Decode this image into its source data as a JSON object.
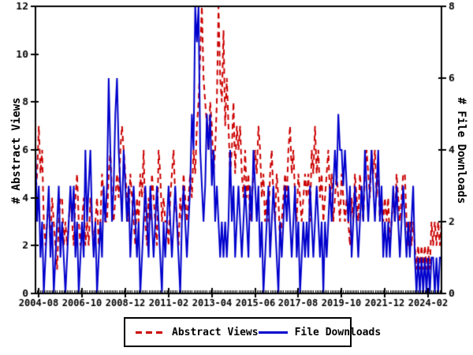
{
  "chart_data": {
    "type": "line",
    "x_unit": "month",
    "x_start": "2004-06",
    "x_end": "2024-10",
    "n_points": 245,
    "x_tick_labels": [
      "2004-08",
      "2006-10",
      "2008-12",
      "2011-02",
      "2013-04",
      "2015-06",
      "2017-08",
      "2019-10",
      "2021-12",
      "2024-02"
    ],
    "x_tick_indices": [
      2,
      28,
      54,
      80,
      106,
      132,
      158,
      184,
      210,
      236
    ],
    "left_axis": {
      "title": "# Abstract Views",
      "ylim": [
        0,
        12
      ],
      "ticks": [
        0,
        2,
        4,
        6,
        8,
        10,
        12
      ]
    },
    "right_axis": {
      "title": "# File Downloads",
      "ylim": [
        0,
        8
      ],
      "ticks": [
        0,
        2,
        4,
        6,
        8
      ]
    },
    "grid": false,
    "legend_position": "bottom-center",
    "series": [
      {
        "name": "Abstract Views",
        "axis": "left",
        "color": "#cc0000",
        "style": "dashed",
        "values": [
          4,
          5,
          7,
          5,
          6,
          3,
          2,
          3,
          4,
          2,
          4,
          3,
          2,
          1,
          3,
          4,
          4,
          2,
          3,
          2,
          3,
          4,
          3,
          2,
          4,
          5,
          3,
          2,
          3,
          4,
          2,
          3,
          2,
          4,
          3,
          2,
          3,
          4,
          2,
          3,
          5,
          4,
          3,
          3,
          5,
          6,
          4,
          3,
          4,
          5,
          4,
          6,
          7,
          6,
          5,
          4,
          3,
          5,
          4,
          3,
          2,
          4,
          3,
          5,
          4,
          6,
          3,
          2,
          4,
          3,
          5,
          4,
          3,
          2,
          6,
          5,
          3,
          4,
          3,
          3,
          2,
          4,
          5,
          6,
          4,
          3,
          2,
          4,
          3,
          5,
          4,
          3,
          4,
          5,
          4,
          6,
          5,
          7,
          8,
          10,
          12,
          9,
          8,
          7,
          6,
          8,
          7,
          5,
          6,
          8,
          12,
          9,
          8,
          11,
          7,
          9,
          7,
          5,
          6,
          8,
          5,
          7,
          6,
          7,
          5,
          4,
          6,
          4,
          5,
          3,
          4,
          5,
          6,
          5,
          7,
          6,
          4,
          5,
          3,
          4,
          3,
          5,
          6,
          4,
          3,
          5,
          4,
          2,
          3,
          4,
          5,
          4,
          6,
          7,
          5,
          6,
          4,
          3,
          5,
          4,
          3,
          4,
          5,
          4,
          5,
          3,
          6,
          5,
          7,
          5,
          6,
          4,
          5,
          3,
          4,
          5,
          6,
          4,
          5,
          3,
          4,
          5,
          4,
          3,
          5,
          4,
          3,
          4,
          3,
          2,
          4,
          3,
          5,
          4,
          3,
          5,
          4,
          3,
          5,
          6,
          5,
          4,
          6,
          5,
          6,
          4,
          5,
          3,
          4,
          3,
          4,
          3,
          4,
          2,
          3,
          4,
          3,
          5,
          4,
          3,
          4,
          5,
          5,
          3,
          2,
          3,
          2,
          3,
          2,
          1,
          2,
          1,
          2,
          1,
          2,
          1,
          2,
          1,
          3,
          2,
          3,
          2,
          3,
          2,
          3
        ]
      },
      {
        "name": "File Downloads",
        "axis": "right",
        "color": "#0000cc",
        "style": "solid",
        "values": [
          4,
          2,
          3,
          1,
          2,
          0,
          1,
          2,
          3,
          1,
          2,
          0,
          1,
          2,
          3,
          1,
          2,
          1,
          0,
          1,
          2,
          3,
          2,
          3,
          1,
          2,
          0,
          1,
          2,
          1,
          4,
          2,
          3,
          4,
          2,
          1,
          2,
          0,
          1,
          2,
          1,
          3,
          2,
          3,
          6,
          4,
          2,
          3,
          5,
          6,
          4,
          3,
          2,
          4,
          3,
          2,
          3,
          1,
          2,
          3,
          2,
          1,
          2,
          0,
          1,
          2,
          3,
          2,
          1,
          3,
          2,
          1,
          2,
          3,
          2,
          1,
          0,
          2,
          1,
          2,
          3,
          2,
          1,
          2,
          3,
          2,
          1,
          0,
          2,
          3,
          2,
          1,
          2,
          3,
          5,
          4,
          8,
          7,
          8,
          4,
          3,
          2,
          3,
          5,
          4,
          5,
          3,
          4,
          2,
          3,
          2,
          1,
          2,
          1,
          2,
          1,
          2,
          4,
          2,
          3,
          1,
          2,
          3,
          2,
          1,
          2,
          3,
          2,
          1,
          3,
          2,
          4,
          3,
          2,
          3,
          1,
          2,
          0,
          1,
          2,
          3,
          1,
          2,
          3,
          2,
          1,
          0,
          2,
          1,
          2,
          3,
          2,
          3,
          2,
          1,
          2,
          3,
          1,
          2,
          0,
          1,
          2,
          1,
          2,
          1,
          3,
          2,
          1,
          2,
          3,
          2,
          1,
          2,
          0,
          2,
          1,
          2,
          3,
          2,
          3,
          4,
          3,
          5,
          4,
          4,
          3,
          4,
          3,
          2,
          3,
          1,
          2,
          3,
          2,
          1,
          2,
          3,
          2,
          4,
          3,
          2,
          3,
          4,
          3,
          2,
          3,
          4,
          2,
          3,
          1,
          2,
          1,
          2,
          1,
          2,
          3,
          2,
          3,
          2,
          1,
          2,
          3,
          2,
          1,
          2,
          1,
          2,
          3,
          1,
          0,
          1,
          0,
          1,
          0,
          1,
          0,
          1,
          0,
          1,
          1,
          0,
          1,
          0,
          1,
          1
        ]
      }
    ],
    "legend": {
      "items": [
        {
          "label": "Abstract Views"
        },
        {
          "label": "File Downloads"
        }
      ]
    }
  },
  "colors": {
    "background": "#ffffff",
    "axis": "#000000",
    "abstract_views": "#cc0000",
    "file_downloads": "#0000cc"
  }
}
